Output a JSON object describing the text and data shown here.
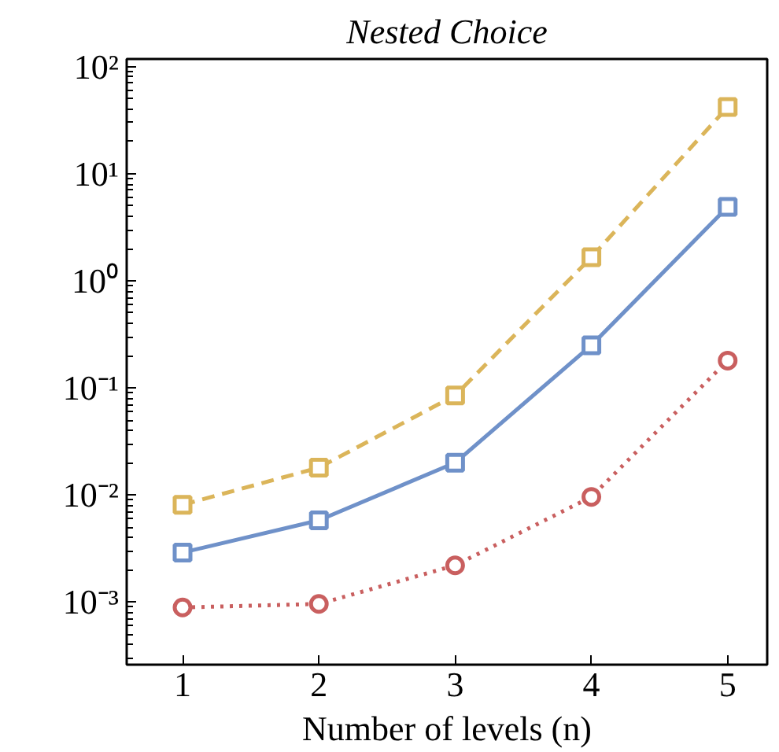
{
  "chart_data": {
    "type": "line",
    "title": "Nested Choice",
    "xlabel": "Number of levels (n)",
    "x": [
      1,
      2,
      3,
      4,
      5
    ],
    "log": "y",
    "grid": false,
    "xlim": [
      0.59,
      5.29
    ],
    "xticks": [
      1,
      2,
      3,
      4,
      5
    ],
    "ylim": [
      0.00026,
      118
    ],
    "yticks": [
      {
        "value": 0.001,
        "label": "10⁻³"
      },
      {
        "value": 0.01,
        "label": "10⁻²"
      },
      {
        "value": 0.1,
        "label": "10⁻¹"
      },
      {
        "value": 1,
        "label": "10⁰"
      },
      {
        "value": 10,
        "label": "10¹"
      },
      {
        "value": 100,
        "label": "10²"
      }
    ],
    "series": [
      {
        "color": "#dbb55a",
        "marker": "square",
        "line_style": "dashed",
        "values": [
          0.0081,
          0.018,
          0.085,
          1.66,
          42
        ]
      },
      {
        "color": "#6f91c9",
        "marker": "square",
        "line_style": "solid",
        "values": [
          0.0029,
          0.0058,
          0.02,
          0.25,
          4.9
        ]
      },
      {
        "color": "#c95f5f",
        "marker": "circle",
        "line_style": "dotted",
        "values": [
          0.00089,
          0.00096,
          0.0022,
          0.0096,
          0.18
        ]
      }
    ]
  }
}
